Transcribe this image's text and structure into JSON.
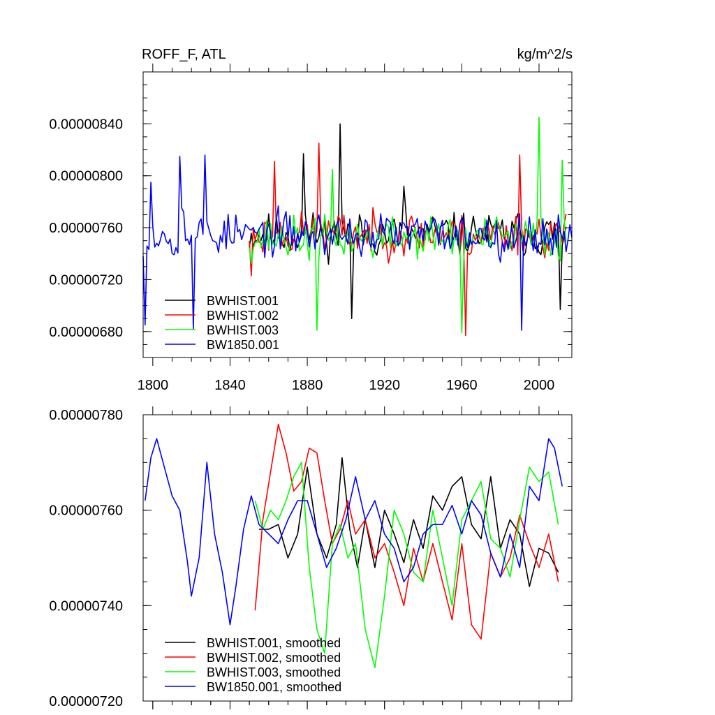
{
  "chart_data": [
    {
      "type": "line",
      "title_left": "ROFF_F, ATL",
      "title_right": "kg/m^2/s",
      "xlim": [
        1795,
        2017
      ],
      "ylim": [
        6.6e-06,
        8.8e-06
      ],
      "xticks": [
        "1800",
        "1840",
        "1880",
        "1920",
        "1960",
        "2000"
      ],
      "yticks": [
        "0.00000680",
        "0.00000720",
        "0.00000760",
        "0.00000800",
        "0.00000840"
      ],
      "legend": [
        "BWHIST.001",
        "BWHIST.002",
        "BWHIST.003",
        "BW1850.001"
      ],
      "series": [
        {
          "name": "BWHIST.001",
          "color": "#000000",
          "x_start": 1850,
          "x_end": 2014,
          "mean": 7.55e-06,
          "amp": 2.2e-07,
          "seed": 11,
          "peaks": [
            [
              1897,
              8.4e-06
            ],
            [
              1878,
              8.17e-06
            ],
            [
              1903,
              6.9e-06
            ],
            [
              2011,
              6.97e-06
            ],
            [
              1930,
              7.92e-06
            ]
          ]
        },
        {
          "name": "BWHIST.002",
          "color": "#ff0000",
          "x_start": 1850,
          "x_end": 2014,
          "mean": 7.55e-06,
          "amp": 2.2e-07,
          "seed": 23,
          "peaks": [
            [
              1886,
              8.25e-06
            ],
            [
              1863,
              8.11e-06
            ],
            [
              1990,
              8.16e-06
            ],
            [
              1962,
              6.77e-06
            ],
            [
              1851,
              7.23e-06
            ]
          ]
        },
        {
          "name": "BWHIST.003",
          "color": "#00ff00",
          "x_start": 1850,
          "x_end": 2014,
          "mean": 7.52e-06,
          "amp": 2.2e-07,
          "seed": 37,
          "peaks": [
            [
              2000,
              8.45e-06
            ],
            [
              1885,
              6.81e-06
            ],
            [
              1960,
              6.79e-06
            ],
            [
              1893,
              8.05e-06
            ],
            [
              2012,
              8.12e-06
            ]
          ]
        },
        {
          "name": "BW1850.001",
          "color": "#0000ff",
          "x_start": 1795,
          "x_end": 2017,
          "mean": 7.55e-06,
          "amp": 2.2e-07,
          "seed": 53,
          "peaks": [
            [
              1796,
              6.85e-06
            ],
            [
              1814,
              8.15e-06
            ],
            [
              1827,
              8.16e-06
            ],
            [
              1821,
              6.82e-06
            ],
            [
              1991,
              6.81e-06
            ],
            [
              1816,
              7.72e-06
            ],
            [
              1799,
              7.95e-06
            ]
          ]
        }
      ]
    },
    {
      "type": "line",
      "xlim": [
        1795,
        2017
      ],
      "ylim": [
        7.2e-06,
        7.8e-06
      ],
      "yticks": [
        "0.00000720",
        "0.00000740",
        "0.00000760",
        "0.00000780"
      ],
      "legend": [
        "BWHIST.001, smoothed",
        "BWHIST.002, smoothed",
        "BWHIST.003, smoothed",
        "BW1850.001, smoothed"
      ],
      "series": [
        {
          "name": "BWHIST.001, smoothed",
          "color": "#000000",
          "x": [
            1855,
            1860,
            1865,
            1870,
            1875,
            1880,
            1885,
            1890,
            1895,
            1898,
            1902,
            1906,
            1910,
            1915,
            1920,
            1925,
            1930,
            1935,
            1940,
            1945,
            1950,
            1955,
            1960,
            1965,
            1970,
            1975,
            1980,
            1985,
            1990,
            1995,
            2000,
            2005,
            2010
          ],
          "values": [
            7.56e-06,
            7.56e-06,
            7.57e-06,
            7.5e-06,
            7.55e-06,
            7.69e-06,
            7.55e-06,
            7.5e-06,
            7.57e-06,
            7.71e-06,
            7.56e-06,
            7.48e-06,
            7.58e-06,
            7.48e-06,
            7.6e-06,
            7.55e-06,
            7.49e-06,
            7.58e-06,
            7.52e-06,
            7.63e-06,
            7.6e-06,
            7.65e-06,
            7.67e-06,
            7.57e-06,
            7.54e-06,
            7.67e-06,
            7.52e-06,
            7.58e-06,
            7.55e-06,
            7.44e-06,
            7.52e-06,
            7.51e-06,
            7.47e-06
          ]
        },
        {
          "name": "BWHIST.002, smoothed",
          "color": "#ff0000",
          "x": [
            1853,
            1857,
            1861,
            1865,
            1869,
            1873,
            1877,
            1881,
            1885,
            1889,
            1893,
            1897,
            1901,
            1905,
            1910,
            1915,
            1920,
            1925,
            1930,
            1935,
            1940,
            1945,
            1950,
            1955,
            1960,
            1965,
            1970,
            1975,
            1980,
            1985,
            1990,
            1995,
            2000,
            2005,
            2010
          ],
          "values": [
            7.39e-06,
            7.58e-06,
            7.68e-06,
            7.78e-06,
            7.72e-06,
            7.64e-06,
            7.66e-06,
            7.73e-06,
            7.72e-06,
            7.62e-06,
            7.53e-06,
            7.56e-06,
            7.62e-06,
            7.55e-06,
            7.58e-06,
            7.5e-06,
            7.53e-06,
            7.47e-06,
            7.4e-06,
            7.52e-06,
            7.45e-06,
            7.53e-06,
            7.45e-06,
            7.37e-06,
            7.53e-06,
            7.36e-06,
            7.33e-06,
            7.51e-06,
            7.46e-06,
            7.5e-06,
            7.59e-06,
            7.53e-06,
            7.48e-06,
            7.55e-06,
            7.45e-06
          ]
        },
        {
          "name": "BWHIST.003, smoothed",
          "color": "#00ff00",
          "x": [
            1853,
            1857,
            1861,
            1865,
            1869,
            1873,
            1877,
            1881,
            1885,
            1889,
            1893,
            1897,
            1901,
            1905,
            1910,
            1915,
            1920,
            1925,
            1930,
            1935,
            1940,
            1945,
            1950,
            1955,
            1960,
            1965,
            1970,
            1975,
            1980,
            1985,
            1990,
            1995,
            2000,
            2005,
            2010
          ],
          "values": [
            7.62e-06,
            7.56e-06,
            7.6e-06,
            7.58e-06,
            7.62e-06,
            7.67e-06,
            7.7e-06,
            7.48e-06,
            7.35e-06,
            7.3e-06,
            7.53e-06,
            7.57e-06,
            7.5e-06,
            7.53e-06,
            7.35e-06,
            7.27e-06,
            7.42e-06,
            7.6e-06,
            7.55e-06,
            7.47e-06,
            7.45e-06,
            7.6e-06,
            7.5e-06,
            7.4e-06,
            7.58e-06,
            7.62e-06,
            7.66e-06,
            7.54e-06,
            7.52e-06,
            7.46e-06,
            7.58e-06,
            7.69e-06,
            7.66e-06,
            7.68e-06,
            7.57e-06
          ]
        },
        {
          "name": "BW1850.001, smoothed",
          "color": "#0000ff",
          "x": [
            1796,
            1799,
            1802,
            1806,
            1810,
            1814,
            1818,
            1820,
            1824,
            1828,
            1832,
            1836,
            1840,
            1843,
            1847,
            1851,
            1855,
            1860,
            1865,
            1870,
            1875,
            1880,
            1885,
            1890,
            1895,
            1900,
            1905,
            1910,
            1915,
            1920,
            1925,
            1930,
            1935,
            1940,
            1945,
            1950,
            1955,
            1960,
            1965,
            1970,
            1975,
            1980,
            1985,
            1990,
            1995,
            2000,
            2005,
            2008,
            2012
          ],
          "values": [
            7.62e-06,
            7.71e-06,
            7.75e-06,
            7.69e-06,
            7.63e-06,
            7.6e-06,
            7.49e-06,
            7.42e-06,
            7.5e-06,
            7.7e-06,
            7.55e-06,
            7.47e-06,
            7.36e-06,
            7.44e-06,
            7.56e-06,
            7.63e-06,
            7.57e-06,
            7.55e-06,
            7.53e-06,
            7.58e-06,
            7.62e-06,
            7.62e-06,
            7.55e-06,
            7.48e-06,
            7.52e-06,
            7.58e-06,
            7.67e-06,
            7.58e-06,
            7.62e-06,
            7.55e-06,
            7.52e-06,
            7.45e-06,
            7.48e-06,
            7.55e-06,
            7.57e-06,
            7.57e-06,
            7.61e-06,
            7.55e-06,
            7.62e-06,
            7.59e-06,
            7.51e-06,
            7.46e-06,
            7.55e-06,
            7.48e-06,
            7.65e-06,
            7.62e-06,
            7.75e-06,
            7.73e-06,
            7.65e-06
          ]
        }
      ]
    }
  ]
}
